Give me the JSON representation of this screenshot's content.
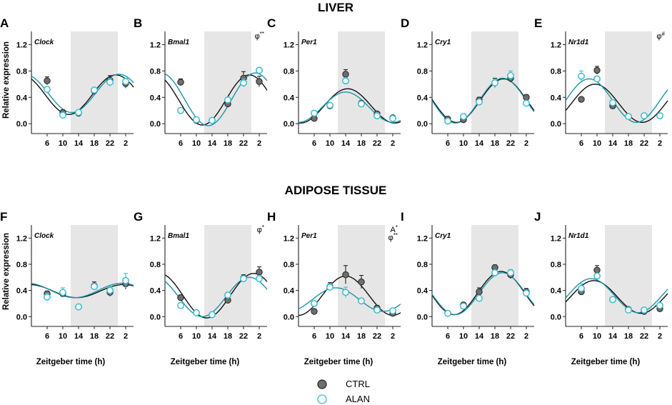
{
  "figure": {
    "row_titles": [
      "LIVER",
      "ADIPOSE TISSUE"
    ],
    "y_axis_title": "Relative expression",
    "x_axis_title": "Zeitgeber time (h)",
    "legend": [
      {
        "label": "CTRL",
        "color": "#6e6e6e"
      },
      {
        "label": "ALAN",
        "color": "#5bc8da"
      }
    ],
    "colors": {
      "ctrl_fill": "#6e6e6e",
      "ctrl_line": "#111111",
      "alan_fill": "#ffffff",
      "alan_line": "#1e94a8",
      "dark_phase": "#e6e6e6"
    }
  },
  "chart_data": [
    {
      "panel": "A",
      "tissue": "LIVER",
      "gene": "Clock",
      "type": "scatter",
      "annotation": "",
      "x": [
        6,
        10,
        14,
        18,
        22,
        26
      ],
      "x_tick_labels": [
        "6",
        "10",
        "14",
        "18",
        "22",
        "2"
      ],
      "ylim": [
        -0.15,
        1.4
      ],
      "y_ticks": [
        0.0,
        0.4,
        0.8,
        1.2
      ],
      "dark_phase": [
        12,
        24
      ],
      "series": [
        {
          "name": "CTRL",
          "values": [
            0.65,
            0.17,
            0.16,
            0.5,
            0.66,
            0.61
          ],
          "errors": [
            0.06,
            0.04,
            0.02,
            0.05,
            0.07,
            0.07
          ],
          "fit": {
            "mesor": 0.44,
            "amplitude": 0.3,
            "acrophase": 23.5
          }
        },
        {
          "name": "ALAN",
          "values": [
            0.52,
            0.13,
            0.17,
            0.51,
            0.63,
            0.64
          ],
          "errors": [
            0.04,
            0.02,
            0.02,
            0.04,
            0.06,
            0.05
          ],
          "fit": {
            "mesor": 0.46,
            "amplitude": 0.29,
            "acrophase": 24.3
          }
        }
      ]
    },
    {
      "panel": "B",
      "tissue": "LIVER",
      "gene": "Bmal1",
      "type": "scatter",
      "annotation": "φ**",
      "x": [
        6,
        10,
        14,
        18,
        22,
        26
      ],
      "x_tick_labels": [
        "6",
        "10",
        "14",
        "18",
        "22",
        "2"
      ],
      "ylim": [
        -0.15,
        1.4
      ],
      "y_ticks": [
        0.0,
        0.4,
        0.8,
        1.2
      ],
      "dark_phase": [
        12,
        24
      ],
      "series": [
        {
          "name": "CTRL",
          "values": [
            0.63,
            0.05,
            0.05,
            0.3,
            0.69,
            0.64
          ],
          "errors": [
            0.05,
            0.02,
            0.02,
            0.04,
            0.1,
            0.08
          ],
          "fit": {
            "mesor": 0.36,
            "amplitude": 0.38,
            "acrophase": 23.5
          }
        },
        {
          "name": "ALAN",
          "values": [
            0.2,
            0.06,
            0.05,
            0.36,
            0.62,
            0.81
          ],
          "errors": [
            0.04,
            0.02,
            0.02,
            0.04,
            0.06,
            0.04
          ],
          "fit": {
            "mesor": 0.37,
            "amplitude": 0.4,
            "acrophase": 25.0
          }
        }
      ]
    },
    {
      "panel": "C",
      "tissue": "LIVER",
      "gene": "Per1",
      "type": "scatter",
      "annotation": "",
      "x": [
        6,
        10,
        14,
        18,
        22,
        26
      ],
      "x_tick_labels": [
        "6",
        "10",
        "14",
        "18",
        "22",
        "2"
      ],
      "ylim": [
        -0.15,
        1.4
      ],
      "y_ticks": [
        0.0,
        0.4,
        0.8,
        1.2
      ],
      "dark_phase": [
        12,
        24
      ],
      "series": [
        {
          "name": "CTRL",
          "values": [
            0.08,
            0.27,
            0.75,
            0.31,
            0.15,
            0.09
          ],
          "errors": [
            0.02,
            0.03,
            0.07,
            0.04,
            0.03,
            0.02
          ],
          "fit": {
            "mesor": 0.27,
            "amplitude": 0.26,
            "acrophase": 14.5
          }
        },
        {
          "name": "ALAN",
          "values": [
            0.16,
            0.28,
            0.65,
            0.3,
            0.12,
            0.08
          ],
          "errors": [
            0.02,
            0.03,
            0.05,
            0.04,
            0.02,
            0.02
          ],
          "fit": {
            "mesor": 0.25,
            "amplitude": 0.23,
            "acrophase": 14.0
          }
        }
      ]
    },
    {
      "panel": "D",
      "tissue": "LIVER",
      "gene": "Cry1",
      "type": "scatter",
      "annotation": "",
      "x": [
        6,
        10,
        14,
        18,
        22,
        26
      ],
      "x_tick_labels": [
        "6",
        "10",
        "14",
        "18",
        "22",
        "2"
      ],
      "ylim": [
        -0.15,
        1.4
      ],
      "y_ticks": [
        0.0,
        0.4,
        0.8,
        1.2
      ],
      "dark_phase": [
        12,
        24
      ],
      "series": [
        {
          "name": "CTRL",
          "values": [
            0.07,
            0.06,
            0.36,
            0.62,
            0.69,
            0.4
          ],
          "errors": [
            0.02,
            0.02,
            0.04,
            0.07,
            0.06,
            0.04
          ],
          "fit": {
            "mesor": 0.35,
            "amplitude": 0.33,
            "acrophase": 20.2
          }
        },
        {
          "name": "ALAN",
          "values": [
            0.04,
            0.11,
            0.33,
            0.62,
            0.73,
            0.31
          ],
          "errors": [
            0.02,
            0.02,
            0.04,
            0.06,
            0.07,
            0.04
          ],
          "fit": {
            "mesor": 0.35,
            "amplitude": 0.34,
            "acrophase": 20.0
          }
        }
      ]
    },
    {
      "panel": "E",
      "tissue": "LIVER",
      "gene": "Nr1d1",
      "type": "scatter",
      "annotation": "φ#",
      "x": [
        6,
        10,
        14,
        18,
        22,
        26
      ],
      "x_tick_labels": [
        "6",
        "10",
        "14",
        "18",
        "22",
        "2"
      ],
      "ylim": [
        -0.15,
        1.4
      ],
      "y_ticks": [
        0.0,
        0.4,
        0.8,
        1.2
      ],
      "dark_phase": [
        12,
        24
      ],
      "series": [
        {
          "name": "CTRL",
          "values": [
            0.37,
            0.81,
            0.27,
            0.11,
            0.12,
            0.12
          ],
          "errors": [
            0.03,
            0.06,
            0.03,
            0.02,
            0.02,
            0.02
          ],
          "fit": {
            "mesor": 0.31,
            "amplitude": 0.29,
            "acrophase": 9.5
          }
        },
        {
          "name": "ALAN",
          "values": [
            0.72,
            0.68,
            0.32,
            0.11,
            0.12,
            0.12
          ],
          "errors": [
            0.08,
            0.04,
            0.03,
            0.02,
            0.02,
            0.02
          ],
          "fit": {
            "mesor": 0.35,
            "amplitude": 0.33,
            "acrophase": 8.0
          }
        }
      ]
    },
    {
      "panel": "F",
      "tissue": "ADIPOSE TISSUE",
      "gene": "Clock",
      "type": "scatter",
      "annotation": "",
      "x": [
        6,
        10,
        14,
        18,
        22,
        26
      ],
      "x_tick_labels": [
        "6",
        "10",
        "14",
        "18",
        "22",
        "2"
      ],
      "ylim": [
        -0.15,
        1.4
      ],
      "y_ticks": [
        0.0,
        0.4,
        0.8,
        1.2
      ],
      "dark_phase": [
        12,
        24
      ],
      "series": [
        {
          "name": "CTRL",
          "values": [
            0.35,
            0.35,
            0.15,
            0.47,
            0.37,
            0.5
          ],
          "errors": [
            0.04,
            0.05,
            0.02,
            0.06,
            0.06,
            0.08
          ],
          "fit": {
            "mesor": 0.39,
            "amplitude": 0.1,
            "acrophase": 25.5
          }
        },
        {
          "name": "ALAN",
          "values": [
            0.3,
            0.37,
            0.15,
            0.46,
            0.4,
            0.55
          ],
          "errors": [
            0.06,
            0.07,
            0.02,
            0.05,
            0.06,
            0.11
          ],
          "fit": {
            "mesor": 0.4,
            "amplitude": 0.11,
            "acrophase": 25.0
          }
        }
      ]
    },
    {
      "panel": "G",
      "tissue": "ADIPOSE TISSUE",
      "gene": "Bmal1",
      "type": "scatter",
      "annotation": "φ*",
      "x": [
        6,
        10,
        14,
        18,
        22,
        26
      ],
      "x_tick_labels": [
        "6",
        "10",
        "14",
        "18",
        "22",
        "2"
      ],
      "ylim": [
        -0.15,
        1.4
      ],
      "y_ticks": [
        0.0,
        0.4,
        0.8,
        1.2
      ],
      "dark_phase": [
        12,
        24
      ],
      "series": [
        {
          "name": "CTRL",
          "values": [
            0.29,
            0.06,
            0.03,
            0.25,
            0.59,
            0.68
          ],
          "errors": [
            0.04,
            0.02,
            0.02,
            0.04,
            0.05,
            0.08
          ],
          "fit": {
            "mesor": 0.32,
            "amplitude": 0.34,
            "acrophase": 24.6
          }
        },
        {
          "name": "ALAN",
          "values": [
            0.17,
            0.06,
            0.03,
            0.33,
            0.58,
            0.58
          ],
          "errors": [
            0.03,
            0.02,
            0.02,
            0.04,
            0.04,
            0.05
          ],
          "fit": {
            "mesor": 0.3,
            "amplitude": 0.3,
            "acrophase": 23.5
          }
        }
      ]
    },
    {
      "panel": "H",
      "tissue": "ADIPOSE TISSUE",
      "gene": "Per1",
      "type": "scatter",
      "annotation": "A*\nφ**",
      "x": [
        6,
        10,
        14,
        18,
        22,
        26
      ],
      "x_tick_labels": [
        "6",
        "10",
        "14",
        "18",
        "22",
        "2"
      ],
      "ylim": [
        -0.15,
        1.4
      ],
      "y_ticks": [
        0.0,
        0.4,
        0.8,
        1.2
      ],
      "dark_phase": [
        12,
        24
      ],
      "series": [
        {
          "name": "CTRL",
          "values": [
            0.08,
            0.46,
            0.64,
            0.53,
            0.13,
            0.05
          ],
          "errors": [
            0.02,
            0.06,
            0.14,
            0.1,
            0.04,
            0.02
          ],
          "fit": {
            "mesor": 0.32,
            "amplitude": 0.3,
            "acrophase": 14.0
          }
        },
        {
          "name": "ALAN",
          "values": [
            0.2,
            0.45,
            0.37,
            0.24,
            0.1,
            0.09
          ],
          "errors": [
            0.03,
            0.05,
            0.08,
            0.03,
            0.03,
            0.02
          ],
          "fit": {
            "mesor": 0.26,
            "amplitude": 0.18,
            "acrophase": 11.5
          }
        }
      ]
    },
    {
      "panel": "I",
      "tissue": "ADIPOSE TISSUE",
      "gene": "Cry1",
      "type": "scatter",
      "annotation": "",
      "x": [
        6,
        10,
        14,
        18,
        22,
        26
      ],
      "x_tick_labels": [
        "6",
        "10",
        "14",
        "18",
        "22",
        "2"
      ],
      "ylim": [
        -0.15,
        1.4
      ],
      "y_ticks": [
        0.0,
        0.4,
        0.8,
        1.2
      ],
      "dark_phase": [
        12,
        24
      ],
      "series": [
        {
          "name": "CTRL",
          "values": [
            0.05,
            0.18,
            0.38,
            0.75,
            0.64,
            0.38
          ],
          "errors": [
            0.02,
            0.03,
            0.06,
            0.04,
            0.06,
            0.05
          ],
          "fit": {
            "mesor": 0.36,
            "amplitude": 0.33,
            "acrophase": 19.6
          }
        },
        {
          "name": "ALAN",
          "values": [
            0.05,
            0.16,
            0.28,
            0.67,
            0.67,
            0.36
          ],
          "errors": [
            0.02,
            0.03,
            0.05,
            0.04,
            0.05,
            0.05
          ],
          "fit": {
            "mesor": 0.35,
            "amplitude": 0.32,
            "acrophase": 19.9
          }
        }
      ]
    },
    {
      "panel": "J",
      "tissue": "ADIPOSE TISSUE",
      "gene": "Nr1d1",
      "type": "scatter",
      "annotation": "",
      "x": [
        6,
        10,
        14,
        18,
        22,
        26
      ],
      "x_tick_labels": [
        "6",
        "10",
        "14",
        "18",
        "22",
        "2"
      ],
      "ylim": [
        -0.15,
        1.4
      ],
      "y_ticks": [
        0.0,
        0.4,
        0.8,
        1.2
      ],
      "dark_phase": [
        12,
        24
      ],
      "series": [
        {
          "name": "CTRL",
          "values": [
            0.38,
            0.71,
            0.26,
            0.11,
            0.08,
            0.12
          ],
          "errors": [
            0.04,
            0.07,
            0.03,
            0.02,
            0.02,
            0.02
          ],
          "fit": {
            "mesor": 0.3,
            "amplitude": 0.25,
            "acrophase": 9.2
          }
        },
        {
          "name": "ALAN",
          "values": [
            0.43,
            0.62,
            0.26,
            0.1,
            0.1,
            0.17
          ],
          "errors": [
            0.07,
            0.04,
            0.03,
            0.02,
            0.02,
            0.03
          ],
          "fit": {
            "mesor": 0.32,
            "amplitude": 0.26,
            "acrophase": 8.5
          }
        }
      ]
    }
  ]
}
